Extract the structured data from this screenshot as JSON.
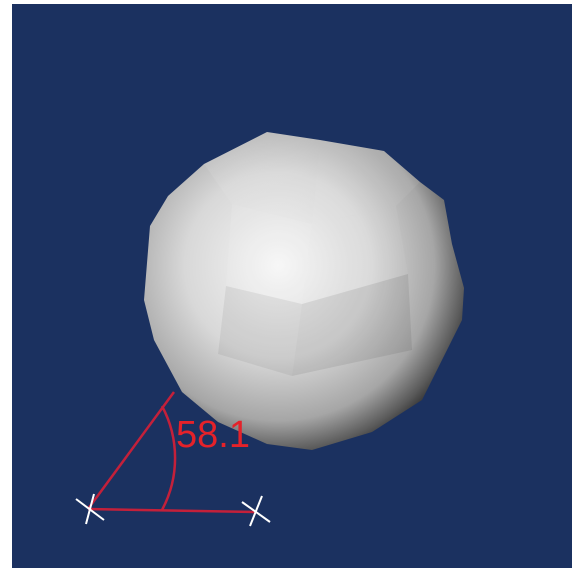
{
  "measurement": {
    "angle_label": "58.1"
  },
  "colors": {
    "background": "#1b3160",
    "measure_line": "#c4203a",
    "measure_text": "#e5222a",
    "handle": "#ffffff",
    "object_highlight": "#f6f6f6",
    "object_shadow": "#1d1d1d"
  },
  "objects": {
    "mesh_name": "sphere-mesh"
  }
}
